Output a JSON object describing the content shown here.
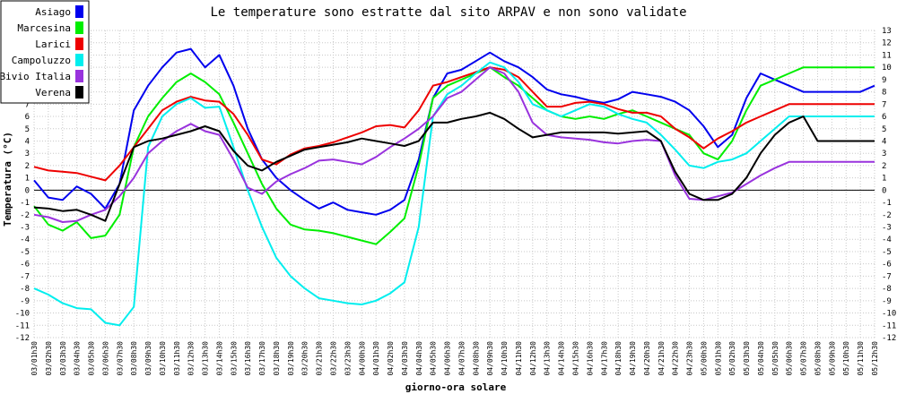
{
  "chart_data": {
    "type": "line",
    "title": "Le temperature sono estratte dal sito ARPAV e non sono validate",
    "xlabel": "giorno-ora solare",
    "ylabel": "Temperatura (°C)",
    "ylim": [
      -12,
      13
    ],
    "grid": true,
    "legend_position": "top-left",
    "x": [
      "03/01h30",
      "03/02h30",
      "03/03h30",
      "03/04h30",
      "03/05h30",
      "03/06h30",
      "03/07h30",
      "03/08h30",
      "03/09h30",
      "03/10h30",
      "03/11h30",
      "03/12h30",
      "03/13h30",
      "03/14h30",
      "03/15h30",
      "03/16h30",
      "03/17h30",
      "03/18h30",
      "03/19h30",
      "03/20h30",
      "03/21h30",
      "03/22h30",
      "03/23h30",
      "04/00h30",
      "04/01h30",
      "04/02h30",
      "04/03h30",
      "04/04h30",
      "04/05h30",
      "04/06h30",
      "04/07h30",
      "04/08h30",
      "04/09h30",
      "04/10h30",
      "04/11h30",
      "04/12h30",
      "04/13h30",
      "04/14h30",
      "04/15h30",
      "04/16h30",
      "04/17h30",
      "04/18h30",
      "04/19h30",
      "04/20h30",
      "04/21h30",
      "04/22h30",
      "04/23h30",
      "05/00h30",
      "05/01h30",
      "05/02h30",
      "05/03h30",
      "05/04h30",
      "05/05h30",
      "05/06h30",
      "05/07h30",
      "05/08h30",
      "05/09h30",
      "05/10h30",
      "05/11h30",
      "05/12h30"
    ],
    "series": [
      {
        "name": "Asiago",
        "color": "#0000ee",
        "values": [
          0.8,
          -0.6,
          -0.8,
          0.3,
          -0.3,
          -1.5,
          0.5,
          6.5,
          8.5,
          10,
          11.2,
          11.5,
          10,
          11,
          8.5,
          5,
          2.5,
          1,
          0,
          -0.8,
          -1.5,
          -1,
          -1.6,
          -1.8,
          -2,
          -1.6,
          -0.8,
          2.5,
          7.5,
          9.5,
          9.8,
          10.5,
          11.2,
          10.5,
          10,
          9.2,
          8.2,
          7.8,
          7.6,
          7.3,
          7.1,
          7.4,
          8,
          7.8,
          7.6,
          7.2,
          6.5,
          5.2,
          3.5,
          4.5,
          7.5,
          9.5,
          9,
          8.5,
          8,
          8,
          8,
          8,
          8,
          8.5
        ]
      },
      {
        "name": "Marcesina",
        "color": "#00ee00",
        "values": [
          -1.3,
          -2.8,
          -3.3,
          -2.6,
          -3.9,
          -3.7,
          -2,
          3.5,
          6,
          7.5,
          8.8,
          9.5,
          8.8,
          7.8,
          5.5,
          3,
          0.5,
          -1.5,
          -2.8,
          -3.2,
          -3.3,
          -3.5,
          -3.8,
          -4.1,
          -4.4,
          -3.4,
          -2.3,
          2,
          7.5,
          8.5,
          9,
          9.5,
          10,
          9.2,
          8.5,
          7.5,
          6.5,
          6,
          5.8,
          6,
          5.8,
          6.2,
          6.5,
          6,
          5.5,
          5,
          4.5,
          3,
          2.5,
          4,
          6.5,
          8.5,
          9,
          9.5,
          10,
          10,
          10,
          10,
          10,
          10
        ]
      },
      {
        "name": "Larici",
        "color": "#ee0000",
        "values": [
          1.9,
          1.6,
          1.5,
          1.4,
          1.1,
          0.8,
          2,
          3.5,
          5,
          6.5,
          7.2,
          7.6,
          7.3,
          7.2,
          6.2,
          4.5,
          2.5,
          2.1,
          2.9,
          3.4,
          3.6,
          3.9,
          4.3,
          4.7,
          5.2,
          5.3,
          5.1,
          6.5,
          8.5,
          8.8,
          9.2,
          9.6,
          10,
          9.8,
          9.2,
          8,
          6.8,
          6.8,
          7.1,
          7.2,
          7,
          6.6,
          6.3,
          6.3,
          6,
          5,
          4.3,
          3.4,
          4.2,
          4.8,
          5.5,
          6,
          6.5,
          7,
          7,
          7,
          7,
          7,
          7,
          7
        ]
      },
      {
        "name": "Campoluzzo",
        "color": "#00eeee",
        "values": [
          -8,
          -8.5,
          -9.2,
          -9.6,
          -9.7,
          -10.8,
          -11,
          -9.5,
          3.5,
          6,
          7,
          7.5,
          6.7,
          6.8,
          3.5,
          0,
          -3,
          -5.5,
          -7,
          -8,
          -8.8,
          -9,
          -9.2,
          -9.3,
          -9,
          -8.4,
          -7.5,
          -3,
          6,
          7.8,
          8.5,
          9.5,
          10.4,
          10,
          8.8,
          7,
          6.5,
          6,
          6.5,
          7,
          6.8,
          6.2,
          5.8,
          5.5,
          4.5,
          3.3,
          2,
          1.8,
          2.3,
          2.5,
          3,
          4,
          5,
          6,
          6,
          6,
          6,
          6,
          6,
          6
        ]
      },
      {
        "name": "Bivio Italia",
        "color": "#9933dd",
        "values": [
          -2,
          -2.2,
          -2.6,
          -2.5,
          -2,
          -1.6,
          -0.5,
          1,
          3,
          4,
          4.8,
          5.4,
          4.8,
          4.5,
          2.5,
          0.2,
          -0.3,
          0.7,
          1.3,
          1.8,
          2.4,
          2.5,
          2.3,
          2.1,
          2.7,
          3.5,
          4.2,
          5,
          6,
          7.5,
          8,
          9,
          10,
          9.5,
          8,
          5.5,
          4.5,
          4.3,
          4.2,
          4.1,
          3.9,
          3.8,
          4,
          4.1,
          4,
          1.2,
          -0.7,
          -0.8,
          -0.5,
          -0.2,
          0.5,
          1.2,
          1.8,
          2.3,
          2.3,
          2.3,
          2.3,
          2.3,
          2.3,
          2.3
        ]
      },
      {
        "name": "Verena",
        "color": "#000000",
        "values": [
          -1.4,
          -1.5,
          -1.7,
          -1.6,
          -2,
          -2.5,
          0.5,
          3.5,
          4,
          4.2,
          4.5,
          4.8,
          5.2,
          4.8,
          3.2,
          2,
          1.6,
          2.3,
          2.8,
          3.3,
          3.5,
          3.7,
          3.9,
          4.2,
          4,
          3.8,
          3.6,
          4,
          5.5,
          5.5,
          5.8,
          6,
          6.3,
          5.8,
          5,
          4.3,
          4.5,
          4.7,
          4.7,
          4.7,
          4.7,
          4.6,
          4.7,
          4.8,
          4,
          1.5,
          -0.3,
          -0.8,
          -0.8,
          -0.3,
          1,
          3,
          4.5,
          5.5,
          6,
          4,
          4,
          4,
          4,
          4
        ]
      }
    ]
  }
}
